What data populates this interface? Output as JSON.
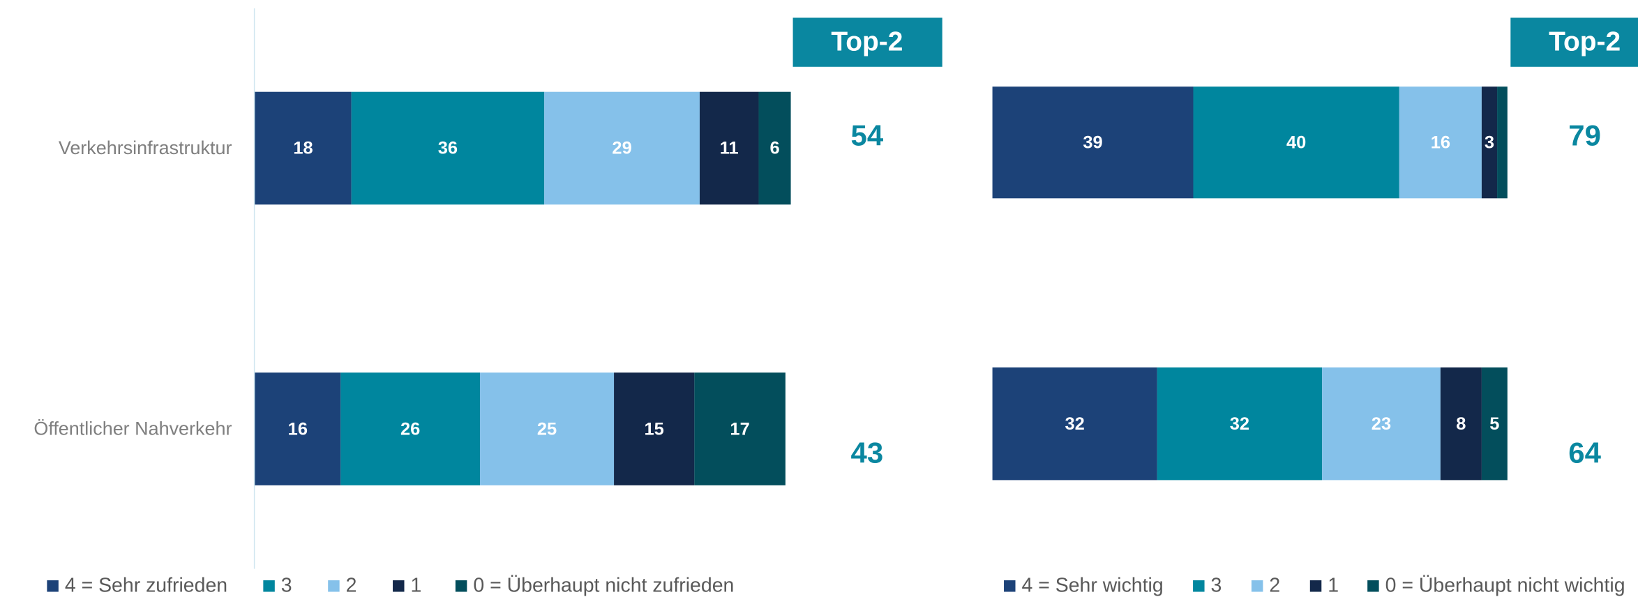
{
  "chart_data": [
    {
      "type": "bar",
      "orientation": "horizontal",
      "stacked": true,
      "categories": [
        "Verkehrsinfrastruktur",
        "Öffentlicher Nahverkehr"
      ],
      "xlim": [
        0,
        100
      ],
      "series": [
        {
          "name": "4 = Sehr zufrieden",
          "color": "#1c4278",
          "values": [
            18,
            16
          ]
        },
        {
          "name": "3",
          "color": "#00869e",
          "values": [
            36,
            26
          ]
        },
        {
          "name": "2",
          "color": "#85c1ea",
          "values": [
            29,
            25
          ]
        },
        {
          "name": "1",
          "color": "#13284a",
          "values": [
            11,
            15
          ]
        },
        {
          "name": "0 = Überhaupt nicht zufrieden",
          "color": "#034e5c",
          "values": [
            6,
            17
          ]
        }
      ],
      "top2": {
        "label": "Top-2",
        "color": "#0a87a0",
        "values": [
          54,
          43
        ]
      }
    },
    {
      "type": "bar",
      "orientation": "horizontal",
      "stacked": true,
      "categories": [
        null,
        null
      ],
      "xlim": [
        0,
        100
      ],
      "series": [
        {
          "name": "4 = Sehr wichtig",
          "color": "#1c4278",
          "values": [
            39,
            32
          ]
        },
        {
          "name": "3",
          "color": "#00869e",
          "values": [
            40,
            32
          ]
        },
        {
          "name": "2",
          "color": "#85c1ea",
          "values": [
            16,
            23
          ]
        },
        {
          "name": "1",
          "color": "#13284a",
          "values": [
            3,
            8
          ]
        },
        {
          "name": "0 = Überhaupt nicht wichtig",
          "color": "#034e5c",
          "values": [
            2,
            5
          ]
        }
      ],
      "top2": {
        "label": "Top-2",
        "color": "#0a87a0",
        "values": [
          79,
          64
        ]
      }
    }
  ]
}
